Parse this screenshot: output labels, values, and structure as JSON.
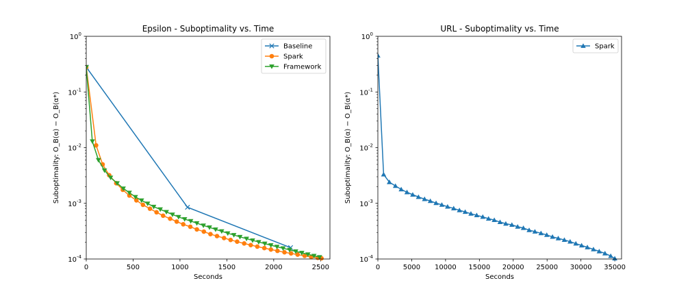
{
  "chart_data": [
    {
      "type": "line",
      "title": "Epsilon - Suboptimality vs. Time",
      "xlabel": "Seconds",
      "ylabel": "Suboptimality: O_B(α) − O_B(α*)",
      "xlim": [
        0,
        2600
      ],
      "ylim": [
        0.0001,
        1
      ],
      "yscale": "log",
      "xticks": [
        0,
        500,
        1000,
        1500,
        2000,
        2500
      ],
      "xtick_labels": [
        "0",
        "500",
        "1000",
        "1500",
        "2000",
        "2500"
      ],
      "yticks": [
        0.0001,
        0.001,
        0.01,
        0.1,
        1
      ],
      "ytick_labels": [
        [
          "10",
          "-4"
        ],
        [
          "10",
          "-3"
        ],
        [
          "10",
          "-2"
        ],
        [
          "10",
          "-1"
        ],
        [
          "10",
          "0"
        ]
      ],
      "legend_position": "top-right",
      "series": [
        {
          "name": "Baseline",
          "color": "#1f77b4",
          "marker": "x",
          "x": [
            0,
            1080,
            2180
          ],
          "y": [
            0.28,
            0.00085,
            0.00016
          ]
        },
        {
          "name": "Spark",
          "color": "#ff7f0e",
          "marker": "circle",
          "x": [
            0,
            105,
            175,
            245,
            320,
            390,
            460,
            535,
            605,
            680,
            750,
            820,
            895,
            965,
            1035,
            1110,
            1180,
            1255,
            1325,
            1395,
            1470,
            1540,
            1610,
            1685,
            1755,
            1825,
            1900,
            1970,
            2040,
            2115,
            2185,
            2255,
            2330,
            2400,
            2470,
            2510
          ],
          "y": [
            0.28,
            0.011,
            0.005,
            0.0032,
            0.0023,
            0.00175,
            0.00138,
            0.00113,
            0.00094,
            0.0008,
            0.00069,
            0.0006,
            0.00053,
            0.00047,
            0.00042,
            0.00038,
            0.00034,
            0.00031,
            0.00028,
            0.000258,
            0.000238,
            0.00022,
            0.000205,
            0.00019,
            0.000178,
            0.000167,
            0.000157,
            0.000148,
            0.00014,
            0.000132,
            0.000126,
            0.00012,
            0.000114,
            0.000109,
            0.000105,
            0.000103
          ]
        },
        {
          "name": "Framework",
          "color": "#2ca02c",
          "marker": "triangle-down",
          "x": [
            0,
            65,
            130,
            195,
            260,
            330,
            395,
            460,
            525,
            590,
            655,
            720,
            790,
            855,
            920,
            985,
            1050,
            1115,
            1180,
            1250,
            1315,
            1380,
            1445,
            1510,
            1575,
            1640,
            1710,
            1775,
            1840,
            1905,
            1970,
            2035,
            2100,
            2170,
            2235,
            2300,
            2365,
            2430,
            2490
          ],
          "y": [
            0.28,
            0.013,
            0.006,
            0.0039,
            0.0029,
            0.0023,
            0.00185,
            0.00155,
            0.0013,
            0.00113,
            0.00099,
            0.00087,
            0.00078,
            0.0007,
            0.00063,
            0.00057,
            0.00052,
            0.00048,
            0.00044,
            0.0004,
            0.00037,
            0.00034,
            0.000315,
            0.00029,
            0.00027,
            0.00025,
            0.000232,
            0.000216,
            0.000202,
            0.000189,
            0.000177,
            0.000166,
            0.000156,
            0.000146,
            0.000137,
            0.000129,
            0.000121,
            0.000114,
            0.000108
          ]
        }
      ]
    },
    {
      "type": "line",
      "title": "URL - Suboptimality vs. Time",
      "xlabel": "Seconds",
      "ylabel": "Suboptimality: O_B(α) − O_B(α*)",
      "xlim": [
        0,
        36000
      ],
      "ylim": [
        0.0001,
        1
      ],
      "yscale": "log",
      "xticks": [
        0,
        5000,
        10000,
        15000,
        20000,
        25000,
        30000,
        35000
      ],
      "xtick_labels": [
        "0",
        "5000",
        "10000",
        "15000",
        "20000",
        "25000",
        "30000",
        "35000"
      ],
      "yticks": [
        0.0001,
        0.001,
        0.01,
        0.1,
        1
      ],
      "ytick_labels": [
        [
          "10",
          "-4"
        ],
        [
          "10",
          "-3"
        ],
        [
          "10",
          "-2"
        ],
        [
          "10",
          "-1"
        ],
        [
          "10",
          "0"
        ]
      ],
      "legend_position": "top-right",
      "series": [
        {
          "name": "Spark",
          "color": "#1f77b4",
          "marker": "triangle-up",
          "x": [
            0,
            850,
            1700,
            2600,
            3450,
            4300,
            5150,
            6000,
            6900,
            7750,
            8600,
            9450,
            10300,
            11200,
            12050,
            12900,
            13750,
            14600,
            15500,
            16350,
            17200,
            18050,
            18900,
            19800,
            20650,
            21500,
            22350,
            23200,
            24100,
            24950,
            25800,
            26650,
            27550,
            28400,
            29250,
            30100,
            30950,
            31850,
            32700,
            33550,
            34400,
            35000
          ],
          "y": [
            0.45,
            0.0033,
            0.0024,
            0.00205,
            0.00178,
            0.00158,
            0.00143,
            0.0013,
            0.00119,
            0.0011,
            0.00101,
            0.00094,
            0.00087,
            0.00081,
            0.00075,
            0.0007,
            0.00065,
            0.00061,
            0.00057,
            0.00053,
            0.0005,
            0.00046,
            0.00043,
            0.00041,
            0.00038,
            0.00036,
            0.00033,
            0.00031,
            0.00029,
            0.00027,
            0.00025,
            0.000235,
            0.00022,
            0.000205,
            0.000189,
            0.000175,
            0.000162,
            0.000149,
            0.000137,
            0.000126,
            0.000113,
            0.000102
          ]
        }
      ]
    }
  ]
}
